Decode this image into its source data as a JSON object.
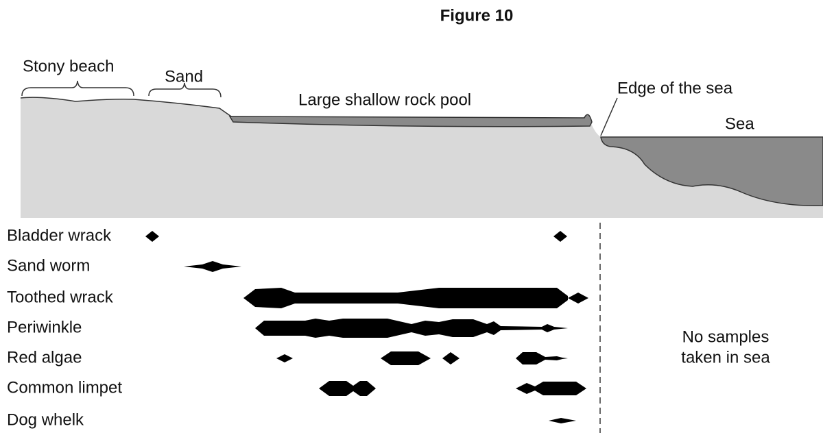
{
  "title": "Figure 10",
  "profile_labels": {
    "stony_beach": "Stony beach",
    "sand": "Sand",
    "rock_pool": "Large shallow rock pool",
    "edge_of_sea": "Edge of the sea",
    "sea": "Sea"
  },
  "species": [
    "Bladder wrack",
    "Sand worm",
    "Toothed wrack",
    "Periwinkle",
    "Red algae",
    "Common limpet",
    "Dog whelk"
  ],
  "note": [
    "No samples",
    "taken in sea"
  ]
}
